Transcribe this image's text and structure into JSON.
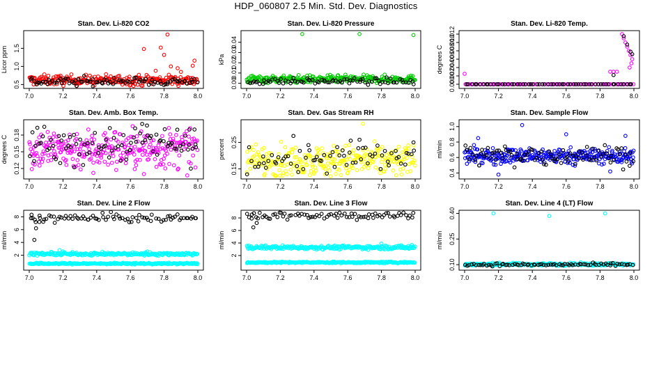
{
  "page_title": "HDP_060807  2.5 Min. Std. Dev. Diagnostics",
  "colors": {
    "black": "#000000",
    "red": "#ff0000",
    "green": "#00cc00",
    "magenta": "#ff00ff",
    "yellow": "#ffff00",
    "blue": "#0000ff",
    "cyan": "#00ffff"
  },
  "chart_data": [
    {
      "type": "scatter",
      "title": "Stan. Dev. Li-820 CO2",
      "ylabel": "Licor ppm",
      "xlim": [
        7.0,
        8.0
      ],
      "ylim": [
        0.45,
        1.95
      ],
      "xticks": [
        7.0,
        7.2,
        7.4,
        7.6,
        7.8,
        8.0
      ],
      "xtick_labels": [
        "7.0",
        "7.2",
        "7.4",
        "7.6",
        "7.8",
        "8.0"
      ],
      "yticks": [
        0.5,
        1.0,
        1.5
      ],
      "ytick_labels": [
        "0.5",
        "1.0",
        "1.5"
      ],
      "series": [
        {
          "name": "primary",
          "color": "red",
          "baseline": 0.62,
          "spread": 0.07,
          "n": 260
        },
        {
          "name": "black",
          "color": "black",
          "baseline": 0.58,
          "spread": 0.06,
          "n": 90
        }
      ],
      "outliers": [
        {
          "series": "primary",
          "x": 7.68,
          "y": 1.48
        },
        {
          "series": "primary",
          "x": 7.78,
          "y": 1.52
        },
        {
          "series": "primary",
          "x": 7.82,
          "y": 1.88
        },
        {
          "series": "primary",
          "x": 7.8,
          "y": 1.32
        },
        {
          "series": "primary",
          "x": 7.84,
          "y": 1.0
        },
        {
          "series": "primary",
          "x": 7.88,
          "y": 0.95
        },
        {
          "series": "primary",
          "x": 7.98,
          "y": 1.16
        },
        {
          "series": "primary",
          "x": 7.97,
          "y": 1.02
        },
        {
          "series": "primary",
          "x": 7.75,
          "y": 0.88
        },
        {
          "series": "primary",
          "x": 7.9,
          "y": 0.85
        }
      ]
    },
    {
      "type": "scatter",
      "title": "Stan. Dev. Li-820 Pressure",
      "ylabel": "kPa",
      "xlim": [
        7.0,
        8.0
      ],
      "ylim": [
        -0.003,
        0.05
      ],
      "xticks": [
        7.0,
        7.2,
        7.4,
        7.6,
        7.8,
        8.0
      ],
      "xtick_labels": [
        "7.0",
        "7.2",
        "7.4",
        "7.6",
        "7.8",
        "8.0"
      ],
      "yticks": [
        0.0,
        0.01,
        0.02,
        0.03,
        0.04
      ],
      "ytick_labels": [
        "0.00",
        "0.01",
        "0.02",
        "0.03",
        "0.04"
      ],
      "series": [
        {
          "name": "primary",
          "color": "green",
          "baseline": 0.004,
          "spread": 0.0018,
          "n": 280
        },
        {
          "name": "black",
          "color": "black",
          "baseline": 0.002,
          "spread": 0.0015,
          "n": 80
        }
      ],
      "outliers": [
        {
          "series": "primary",
          "x": 7.33,
          "y": 0.048
        },
        {
          "series": "primary",
          "x": 7.67,
          "y": 0.048
        },
        {
          "series": "primary",
          "x": 7.99,
          "y": 0.047
        }
      ]
    },
    {
      "type": "scatter",
      "title": "Stan. Dev. Li-820 Temp.",
      "ylabel": "degrees C",
      "xlim": [
        7.0,
        8.0
      ],
      "ylim": [
        -0.0005,
        0.0125
      ],
      "xticks": [
        7.0,
        7.2,
        7.4,
        7.6,
        7.8,
        8.0
      ],
      "xtick_labels": [
        "7.0",
        "7.2",
        "7.4",
        "7.6",
        "7.8",
        "8.0"
      ],
      "yticks": [
        0.0,
        0.002,
        0.004,
        0.006,
        0.008,
        0.01,
        0.012
      ],
      "ytick_labels": [
        "0.000",
        "0.002",
        "0.004",
        "0.006",
        "0.008",
        "0.010",
        "0.012"
      ],
      "series": [
        {
          "name": "primary",
          "color": "magenta",
          "baseline": 0.0,
          "spread": 0.0,
          "n": 100
        },
        {
          "name": "black",
          "color": "black",
          "baseline": 0.0,
          "spread": 0.0,
          "n": 60
        }
      ],
      "outliers": [
        {
          "series": "primary",
          "x": 7.0,
          "y": 0.0025
        },
        {
          "series": "primary",
          "x": 7.86,
          "y": 0.003
        },
        {
          "series": "primary",
          "x": 7.88,
          "y": 0.003
        },
        {
          "series": "primary",
          "x": 7.9,
          "y": 0.003
        },
        {
          "series": "primary",
          "x": 7.93,
          "y": 0.012
        },
        {
          "series": "primary",
          "x": 7.94,
          "y": 0.011
        },
        {
          "series": "primary",
          "x": 7.95,
          "y": 0.01
        },
        {
          "series": "primary",
          "x": 7.96,
          "y": 0.009
        },
        {
          "series": "primary",
          "x": 7.97,
          "y": 0.008
        },
        {
          "series": "primary",
          "x": 7.98,
          "y": 0.007
        },
        {
          "series": "primary",
          "x": 7.99,
          "y": 0.006
        },
        {
          "series": "primary",
          "x": 7.985,
          "y": 0.005
        },
        {
          "series": "primary",
          "x": 7.975,
          "y": 0.004
        },
        {
          "series": "black",
          "x": 7.94,
          "y": 0.0115
        },
        {
          "series": "black",
          "x": 7.96,
          "y": 0.0095
        },
        {
          "series": "black",
          "x": 7.98,
          "y": 0.0078
        },
        {
          "series": "black",
          "x": 7.99,
          "y": 0.0072
        },
        {
          "series": "black",
          "x": 7.88,
          "y": 0.0022
        }
      ]
    },
    {
      "type": "scatter",
      "title": "Stan. Dev. Amb. Box Temp.",
      "ylabel": "degrees C",
      "xlim": [
        7.0,
        8.0
      ],
      "ylim": [
        0.105,
        0.205
      ],
      "xticks": [
        7.0,
        7.2,
        7.4,
        7.6,
        7.8,
        8.0
      ],
      "xtick_labels": [
        "7.0",
        "7.2",
        "7.4",
        "7.6",
        "7.8",
        "8.0"
      ],
      "yticks": [
        0.12,
        0.15,
        0.18
      ],
      "ytick_labels": [
        "0.12",
        "0.15",
        "0.18"
      ],
      "series": [
        {
          "name": "primary",
          "color": "magenta",
          "baseline": 0.155,
          "spread": 0.018,
          "n": 300
        },
        {
          "name": "black",
          "color": "black",
          "baseline": 0.165,
          "spread": 0.018,
          "n": 90
        }
      ],
      "outliers": [
        {
          "series": "black",
          "x": 7.67,
          "y": 0.2
        },
        {
          "series": "black",
          "x": 7.95,
          "y": 0.19
        },
        {
          "series": "black",
          "x": 7.98,
          "y": 0.19
        },
        {
          "series": "primary",
          "x": 7.38,
          "y": 0.112
        },
        {
          "series": "primary",
          "x": 7.68,
          "y": 0.11
        }
      ]
    },
    {
      "type": "scatter",
      "title": "Stan. Dev. Gas Stream RH",
      "ylabel": "percent",
      "xlim": [
        7.0,
        8.0
      ],
      "ylim": [
        0.12,
        0.33
      ],
      "xticks": [
        7.0,
        7.2,
        7.4,
        7.6,
        7.8,
        8.0
      ],
      "xtick_labels": [
        "7.0",
        "7.2",
        "7.4",
        "7.6",
        "7.8",
        "8.0"
      ],
      "yticks": [
        0.15,
        0.25
      ],
      "ytick_labels": [
        "0.15",
        "0.25"
      ],
      "series": [
        {
          "name": "primary",
          "color": "yellow",
          "baseline": 0.18,
          "spread": 0.03,
          "n": 300
        },
        {
          "name": "black",
          "color": "black",
          "baseline": 0.19,
          "spread": 0.03,
          "n": 70
        }
      ],
      "outliers": [
        {
          "series": "primary",
          "x": 7.69,
          "y": 0.32
        },
        {
          "series": "black",
          "x": 7.67,
          "y": 0.26
        },
        {
          "series": "black",
          "x": 7.99,
          "y": 0.25
        }
      ]
    },
    {
      "type": "scatter",
      "title": "Stan. Dev. Sample Flow",
      "ylabel": "ml/min",
      "xlim": [
        7.0,
        8.0
      ],
      "ylim": [
        0.35,
        1.07
      ],
      "xticks": [
        7.0,
        7.2,
        7.4,
        7.6,
        7.8,
        8.0
      ],
      "xtick_labels": [
        "7.0",
        "7.2",
        "7.4",
        "7.6",
        "7.8",
        "8.0"
      ],
      "yticks": [
        0.4,
        0.6,
        0.8,
        1.0
      ],
      "ytick_labels": [
        "0.4",
        "0.6",
        "0.8",
        "1.0"
      ],
      "series": [
        {
          "name": "primary",
          "color": "blue",
          "baseline": 0.62,
          "spread": 0.05,
          "n": 320
        },
        {
          "name": "black",
          "color": "black",
          "baseline": 0.63,
          "spread": 0.07,
          "n": 90
        }
      ],
      "outliers": [
        {
          "series": "primary",
          "x": 7.34,
          "y": 1.02
        },
        {
          "series": "primary",
          "x": 7.2,
          "y": 0.38
        },
        {
          "series": "primary",
          "x": 7.86,
          "y": 0.42
        },
        {
          "series": "primary",
          "x": 7.6,
          "y": 0.9
        },
        {
          "series": "primary",
          "x": 7.08,
          "y": 0.85
        },
        {
          "series": "primary",
          "x": 7.95,
          "y": 0.88
        }
      ]
    },
    {
      "type": "scatter",
      "title": "Stan. Dev. Line 2 Flow",
      "ylabel": "ml/min",
      "xlim": [
        7.0,
        8.0
      ],
      "ylim": [
        0.0,
        8.8
      ],
      "xticks": [
        7.0,
        7.2,
        7.4,
        7.6,
        7.8,
        8.0
      ],
      "xtick_labels": [
        "7.0",
        "7.2",
        "7.4",
        "7.6",
        "7.8",
        "8.0"
      ],
      "yticks": [
        2,
        4,
        6,
        8
      ],
      "ytick_labels": [
        "2",
        "4",
        "6",
        "8"
      ],
      "series": [
        {
          "name": "cyan-upper",
          "color": "cyan",
          "baseline": 2.2,
          "spread": 0.12,
          "n": 260
        },
        {
          "name": "cyan-lower",
          "color": "cyan",
          "baseline": 0.7,
          "spread": 0.06,
          "n": 260
        },
        {
          "name": "black",
          "color": "black",
          "baseline": 7.8,
          "spread": 0.35,
          "n": 80
        }
      ],
      "outliers": [
        {
          "series": "black",
          "x": 7.02,
          "y": 7.8
        },
        {
          "series": "black",
          "x": 7.04,
          "y": 6.2
        },
        {
          "series": "black",
          "x": 7.06,
          "y": 7.2
        },
        {
          "series": "black",
          "x": 7.03,
          "y": 4.4
        },
        {
          "series": "cyan-upper",
          "x": 7.18,
          "y": 2.8
        },
        {
          "series": "cyan-upper",
          "x": 7.2,
          "y": 2.6
        },
        {
          "series": "cyan-upper",
          "x": 7.7,
          "y": 2.6
        }
      ]
    },
    {
      "type": "scatter",
      "title": "Stan. Dev. Line 3 Flow",
      "ylabel": "ml/min",
      "xlim": [
        7.0,
        8.0
      ],
      "ylim": [
        0.0,
        9.0
      ],
      "xticks": [
        7.0,
        7.2,
        7.4,
        7.6,
        7.8,
        8.0
      ],
      "xtick_labels": [
        "7.0",
        "7.2",
        "7.4",
        "7.6",
        "7.8",
        "8.0"
      ],
      "yticks": [
        2,
        4,
        6,
        8
      ],
      "ytick_labels": [
        "2",
        "4",
        "6",
        "8"
      ],
      "series": [
        {
          "name": "cyan-upper",
          "color": "cyan",
          "baseline": 3.3,
          "spread": 0.15,
          "n": 260
        },
        {
          "name": "cyan-lower",
          "color": "cyan",
          "baseline": 0.9,
          "spread": 0.06,
          "n": 260
        },
        {
          "name": "black",
          "color": "black",
          "baseline": 8.4,
          "spread": 0.35,
          "n": 80
        }
      ],
      "outliers": [
        {
          "series": "black",
          "x": 7.04,
          "y": 6.5
        },
        {
          "series": "black",
          "x": 7.06,
          "y": 7.2
        },
        {
          "series": "black",
          "x": 7.03,
          "y": 7.9
        },
        {
          "series": "cyan-upper",
          "x": 7.8,
          "y": 3.9
        },
        {
          "series": "cyan-upper",
          "x": 7.98,
          "y": 3.7
        }
      ]
    },
    {
      "type": "scatter",
      "title": "Stan. Dev. Line 4 (LT) Flow",
      "ylabel": "ml/min",
      "xlim": [
        7.0,
        8.0
      ],
      "ylim": [
        0.08,
        0.41
      ],
      "xticks": [
        7.0,
        7.2,
        7.4,
        7.6,
        7.8,
        8.0
      ],
      "xtick_labels": [
        "7.0",
        "7.2",
        "7.4",
        "7.6",
        "7.8",
        "8.0"
      ],
      "yticks": [
        0.1,
        0.25,
        0.4
      ],
      "ytick_labels": [
        "0.10",
        "0.25",
        "0.40"
      ],
      "series": [
        {
          "name": "primary",
          "color": "cyan",
          "baseline": 0.102,
          "spread": 0.004,
          "n": 280
        },
        {
          "name": "black",
          "color": "black",
          "baseline": 0.1,
          "spread": 0.004,
          "n": 80
        }
      ],
      "outliers": [
        {
          "series": "primary",
          "x": 7.17,
          "y": 0.4
        },
        {
          "series": "primary",
          "x": 7.5,
          "y": 0.385
        },
        {
          "series": "primary",
          "x": 7.83,
          "y": 0.4
        }
      ]
    }
  ]
}
